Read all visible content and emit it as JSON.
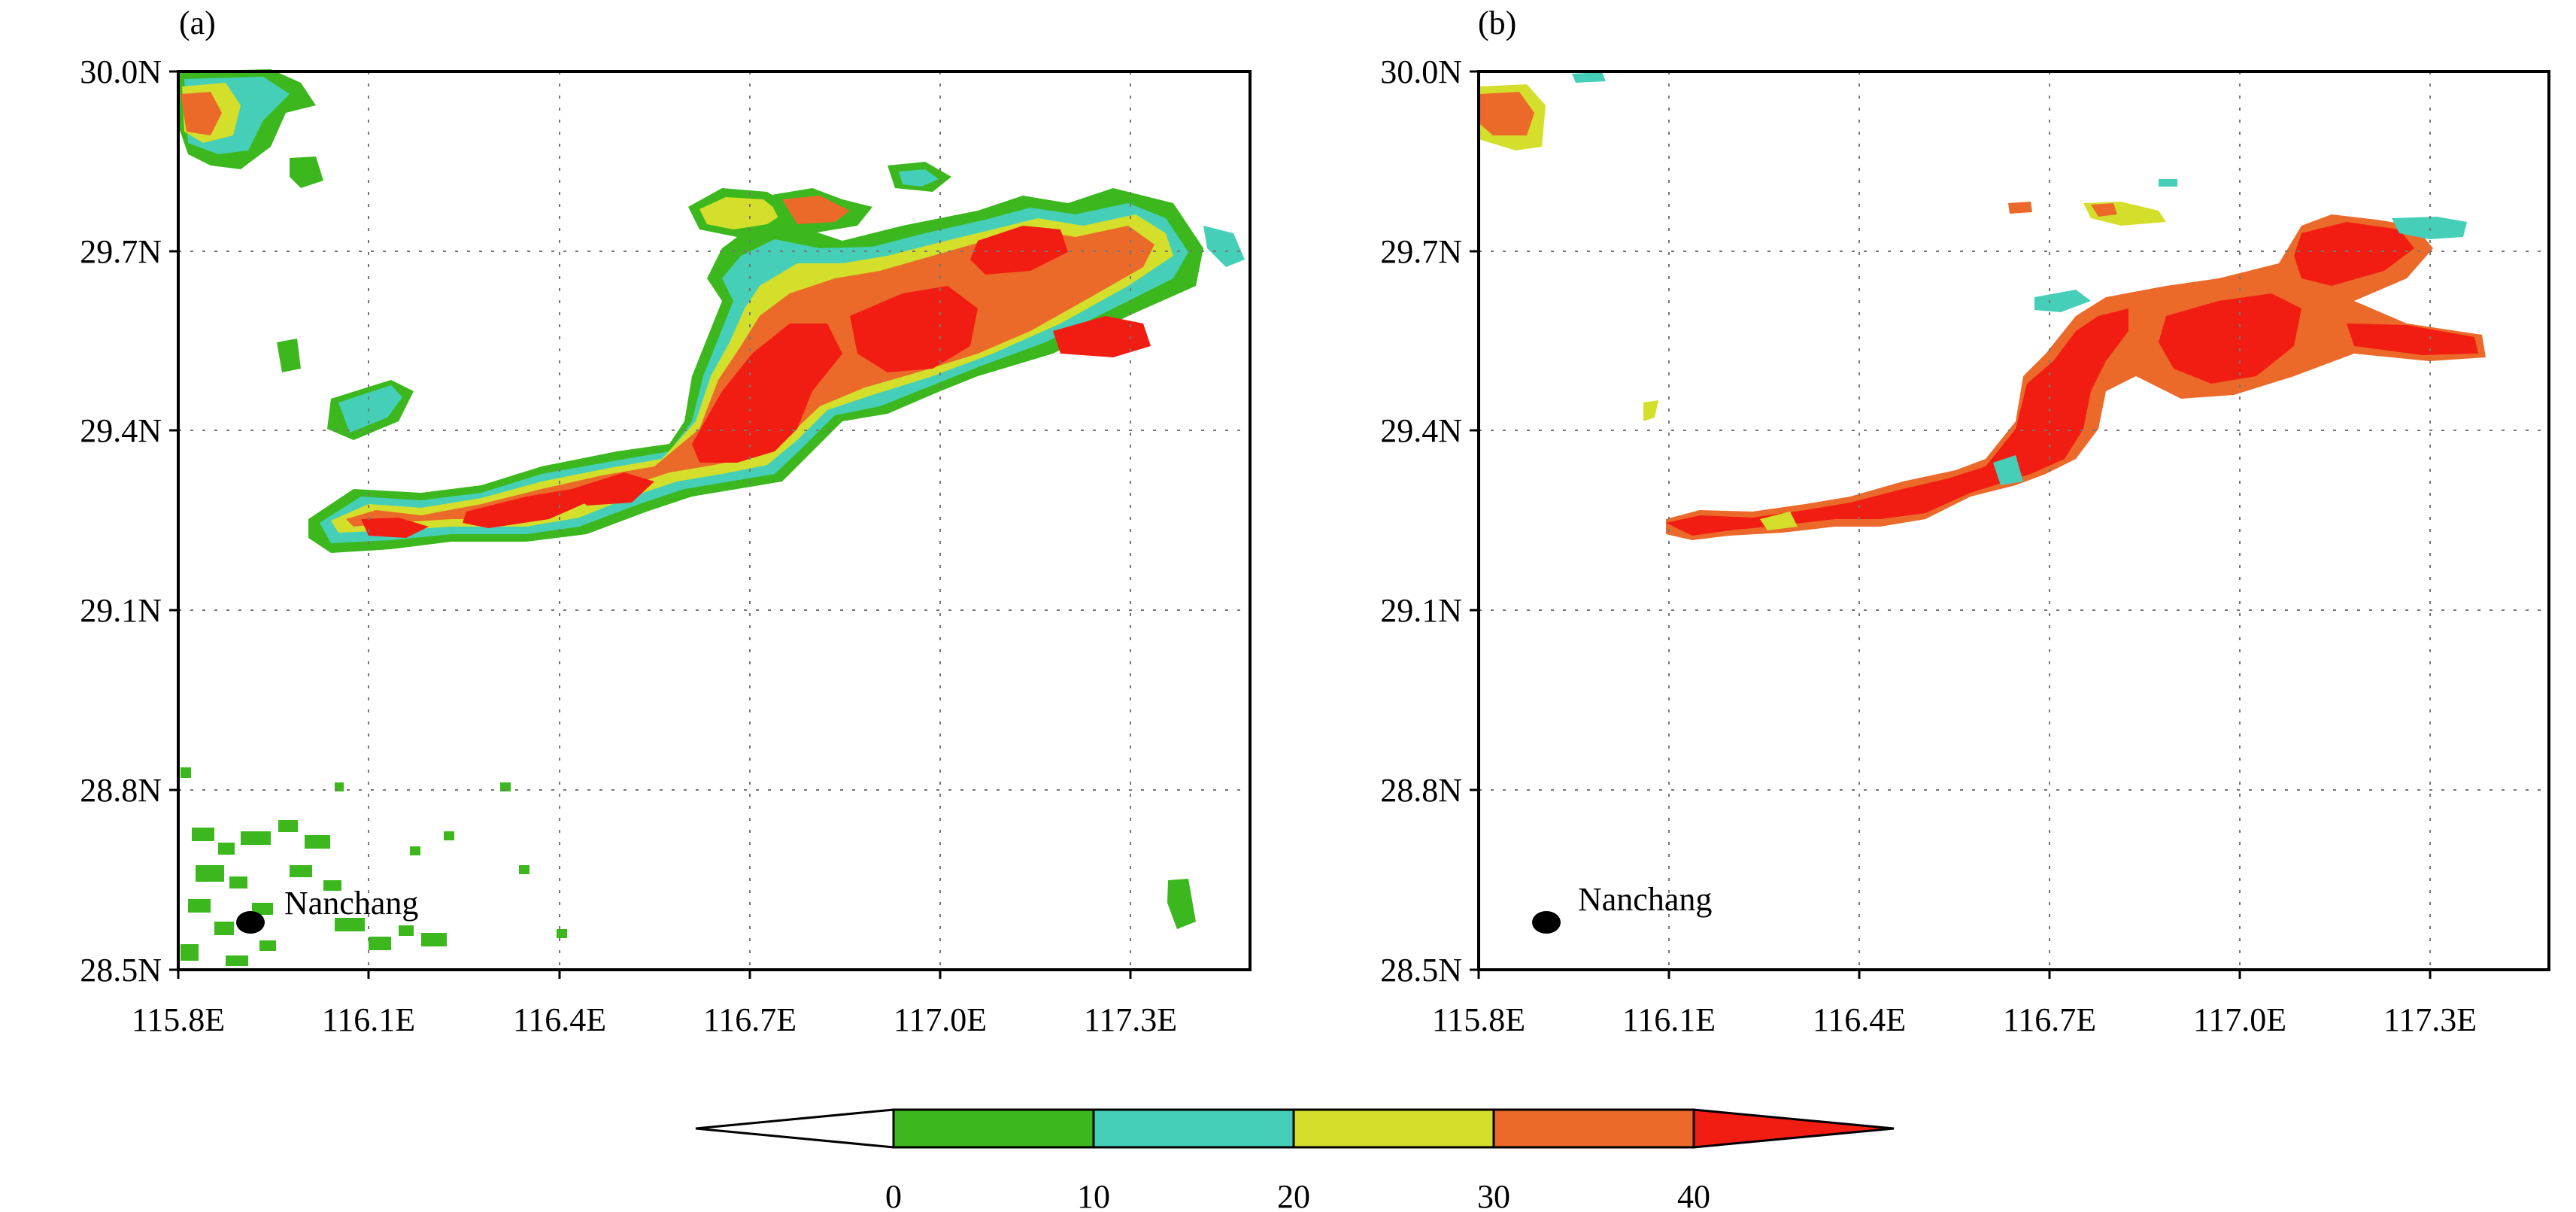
{
  "figure": {
    "panels": [
      {
        "label": "(a)",
        "x_ticks": [
          "115.8E",
          "116.1E",
          "116.4E",
          "116.7E",
          "117.0E",
          "117.3E"
        ],
        "y_ticks": [
          "30.0N",
          "29.7N",
          "29.4N",
          "29.1N",
          "28.8N",
          "28.5N"
        ],
        "city": {
          "name": "Nanchang",
          "lon": 115.92,
          "lat": 28.58
        }
      },
      {
        "label": "(b)",
        "x_ticks": [
          "115.8E",
          "116.1E",
          "116.4E",
          "116.7E",
          "117.0E",
          "117.3E"
        ],
        "y_ticks": [
          "30.0N",
          "29.7N",
          "29.4N",
          "29.1N",
          "28.8N",
          "28.5N"
        ],
        "city": {
          "name": "Nanchang",
          "lon": 115.92,
          "lat": 28.58
        }
      }
    ],
    "colorbar": {
      "ticks": [
        "0",
        "10",
        "20",
        "30",
        "40"
      ],
      "colors": [
        "#ffffff",
        "#3cb81e",
        "#46cfb8",
        "#d3df2a",
        "#eb6a2a",
        "#f21d12"
      ],
      "extend": "both"
    }
  }
}
